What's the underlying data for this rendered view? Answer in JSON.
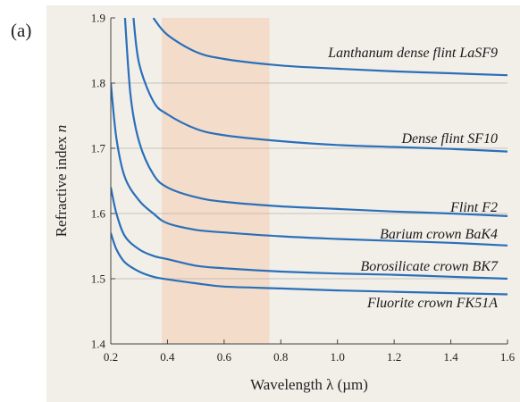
{
  "panel_label": "(a)",
  "colors": {
    "background": "#f2efe9",
    "visible_band": "#f3dcca",
    "curve": "#2a6fb9",
    "grid": "#b8b4ad",
    "axis": "#444444"
  },
  "chart_data": {
    "type": "line",
    "title": "",
    "xlabel": "Wavelength λ (µm)",
    "ylabel_main": "Refractive index ",
    "ylabel_var": "n",
    "xlim": [
      0.2,
      1.6
    ],
    "ylim": [
      1.4,
      1.9
    ],
    "x_ticks": [
      0.2,
      0.4,
      0.6,
      0.8,
      1.0,
      1.2,
      1.4,
      1.6
    ],
    "x_tick_labels": [
      "0.2",
      "0.4",
      "0.6",
      "0.8",
      "1.0",
      "1.2",
      "1.4",
      "1.6"
    ],
    "y_ticks": [
      1.4,
      1.5,
      1.6,
      1.7,
      1.8,
      1.9
    ],
    "y_tick_labels": [
      "1.4",
      "1.5",
      "1.6",
      "1.7",
      "1.8",
      "1.9"
    ],
    "grid": "horizontal",
    "shaded_region": {
      "x": [
        0.38,
        0.76
      ]
    },
    "series": [
      {
        "name": "Lanthanum dense flint LaSF9",
        "x": [
          0.35,
          0.4,
          0.5,
          0.6,
          0.8,
          1.0,
          1.2,
          1.4,
          1.6
        ],
        "y": [
          1.9,
          1.874,
          1.848,
          1.837,
          1.827,
          1.822,
          1.818,
          1.815,
          1.812
        ]
      },
      {
        "name": "Dense flint SF10",
        "x": [
          0.28,
          0.3,
          0.35,
          0.4,
          0.5,
          0.6,
          0.8,
          1.0,
          1.2,
          1.4,
          1.6
        ],
        "y": [
          1.9,
          1.83,
          1.772,
          1.752,
          1.73,
          1.72,
          1.711,
          1.705,
          1.702,
          1.699,
          1.695
        ]
      },
      {
        "name": "Flint F2",
        "x": [
          0.25,
          0.27,
          0.3,
          0.35,
          0.4,
          0.5,
          0.6,
          0.8,
          1.0,
          1.2,
          1.4,
          1.6
        ],
        "y": [
          1.9,
          1.78,
          1.71,
          1.66,
          1.64,
          1.625,
          1.618,
          1.611,
          1.607,
          1.603,
          1.6,
          1.596
        ]
      },
      {
        "name": "Barium crown BaK4",
        "x": [
          0.2,
          0.22,
          0.25,
          0.3,
          0.35,
          0.4,
          0.5,
          0.6,
          0.8,
          1.0,
          1.2,
          1.4,
          1.6
        ],
        "y": [
          1.8,
          1.715,
          1.655,
          1.62,
          1.6,
          1.585,
          1.575,
          1.571,
          1.565,
          1.561,
          1.558,
          1.555,
          1.551
        ]
      },
      {
        "name": "Borosilicate crown BK7",
        "x": [
          0.2,
          0.22,
          0.25,
          0.3,
          0.35,
          0.4,
          0.5,
          0.6,
          0.8,
          1.0,
          1.2,
          1.4,
          1.6
        ],
        "y": [
          1.64,
          1.6,
          1.565,
          1.545,
          1.535,
          1.53,
          1.52,
          1.516,
          1.511,
          1.508,
          1.506,
          1.503,
          1.5
        ]
      },
      {
        "name": "Fluorite crown FK51A",
        "x": [
          0.2,
          0.22,
          0.25,
          0.3,
          0.35,
          0.4,
          0.5,
          0.6,
          0.8,
          1.0,
          1.2,
          1.4,
          1.6
        ],
        "y": [
          1.57,
          1.545,
          1.525,
          1.511,
          1.503,
          1.499,
          1.493,
          1.488,
          1.485,
          1.482,
          1.48,
          1.478,
          1.476
        ]
      }
    ]
  }
}
